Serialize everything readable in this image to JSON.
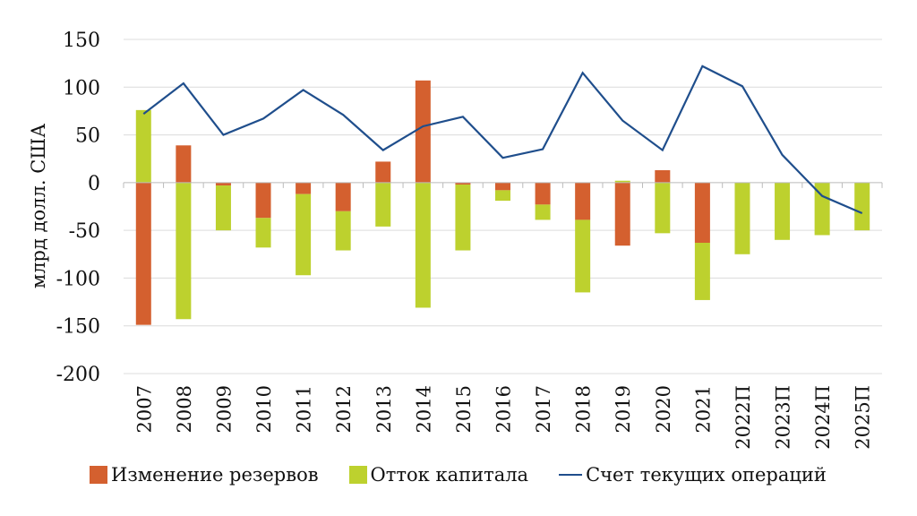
{
  "chart_data": {
    "type": "bar",
    "stacked": true,
    "ylabel": "млрд долл. США",
    "ylim": [
      -200,
      150
    ],
    "yticks": [
      150,
      100,
      50,
      0,
      -50,
      -100,
      -150,
      -200
    ],
    "grid": true,
    "legend_position": "bottom",
    "categories": [
      "2007",
      "2008",
      "2009",
      "2010",
      "2011",
      "2012",
      "2013",
      "2014",
      "2015",
      "2016",
      "2017",
      "2018",
      "2019",
      "2020",
      "2021",
      "2022П",
      "2023П",
      "2024П",
      "2025П"
    ],
    "series": [
      {
        "name": "Изменение резервов",
        "kind": "bar",
        "color": "#d4602f",
        "values": [
          -149,
          39,
          -3,
          -37,
          -12,
          -30,
          22,
          107,
          -2,
          -8,
          -23,
          -39,
          -66,
          13,
          -63,
          0,
          0,
          0,
          0
        ]
      },
      {
        "name": "Отток капитала",
        "kind": "bar",
        "color": "#bdd12e",
        "values": [
          76,
          -143,
          -47,
          -31,
          -85,
          -41,
          -46,
          -131,
          -69,
          -11,
          -16,
          -76,
          2,
          -53,
          -60,
          -75,
          -60,
          -55,
          -50
        ]
      },
      {
        "name": "Счет текущих операций",
        "kind": "line",
        "color": "#1f4e8c",
        "values": [
          72,
          104,
          50,
          67,
          97,
          71,
          34,
          59,
          69,
          26,
          35,
          115,
          65,
          34,
          122,
          101,
          29,
          -14,
          -32
        ]
      }
    ]
  }
}
